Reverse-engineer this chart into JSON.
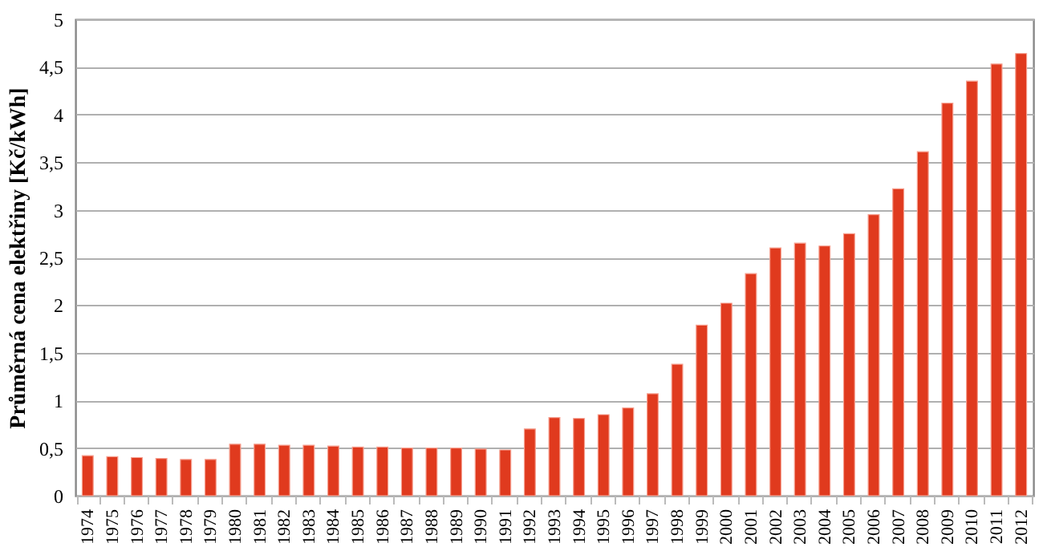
{
  "chart_data": {
    "type": "bar",
    "ylabel": "Průměrná cena elektřiny [Kč/kWh]",
    "categories": [
      "1974",
      "1975",
      "1976",
      "1977",
      "1978",
      "1979",
      "1980",
      "1981",
      "1982",
      "1983",
      "1984",
      "1985",
      "1986",
      "1987",
      "1988",
      "1989",
      "1990",
      "1991",
      "1992",
      "1993",
      "1994",
      "1995",
      "1996",
      "1997",
      "1998",
      "1999",
      "2000",
      "2001",
      "2002",
      "2003",
      "2004",
      "2005",
      "2006",
      "2007",
      "2008",
      "2009",
      "2010",
      "2011",
      "2012"
    ],
    "values": [
      0.42,
      0.41,
      0.4,
      0.39,
      0.38,
      0.38,
      0.54,
      0.54,
      0.53,
      0.53,
      0.52,
      0.51,
      0.51,
      0.5,
      0.5,
      0.5,
      0.49,
      0.48,
      0.7,
      0.82,
      0.81,
      0.85,
      0.92,
      1.07,
      1.38,
      1.79,
      2.02,
      2.33,
      2.6,
      2.65,
      2.62,
      2.75,
      2.95,
      3.22,
      3.61,
      4.12,
      4.35,
      4.53,
      4.64
    ],
    "color": "#e03a1e",
    "ylim": [
      0,
      5
    ],
    "yticks": [
      0,
      {
        "value": 0.5,
        "label": "0,5"
      },
      1,
      {
        "value": 1.5,
        "label": "1,5"
      },
      2,
      {
        "value": 2.5,
        "label": "2,5"
      },
      3,
      {
        "value": 3.5,
        "label": "3,5"
      },
      4,
      {
        "value": 4.5,
        "label": "4,5"
      },
      5
    ],
    "grid": "y"
  }
}
